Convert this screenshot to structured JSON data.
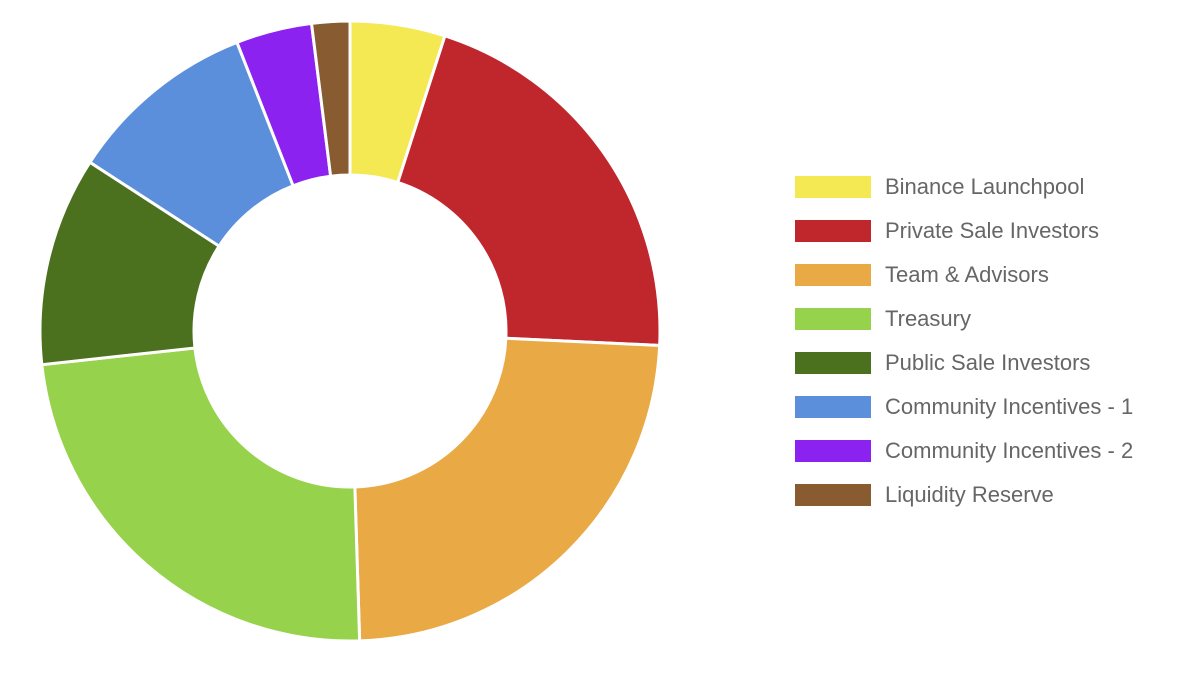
{
  "chart_data": {
    "type": "pie",
    "style": "doughnut",
    "legend_position": "right",
    "start_angle_deg": 0,
    "direction": "clockwise",
    "categories": [
      "Binance Launchpool",
      "Private Sale Investors",
      "Team & Advisors",
      "Treasury",
      "Public Sale Investors",
      "Community Incentives - 1",
      "Community Incentives - 2",
      "Liquidity Reserve"
    ],
    "values": [
      5,
      21,
      24,
      24,
      11,
      10,
      4,
      2
    ],
    "colors": [
      "#f4e853",
      "#c0272d",
      "#e9a944",
      "#96d24b",
      "#4b711f",
      "#5b8fdc",
      "#8b22f0",
      "#885b31"
    ]
  }
}
